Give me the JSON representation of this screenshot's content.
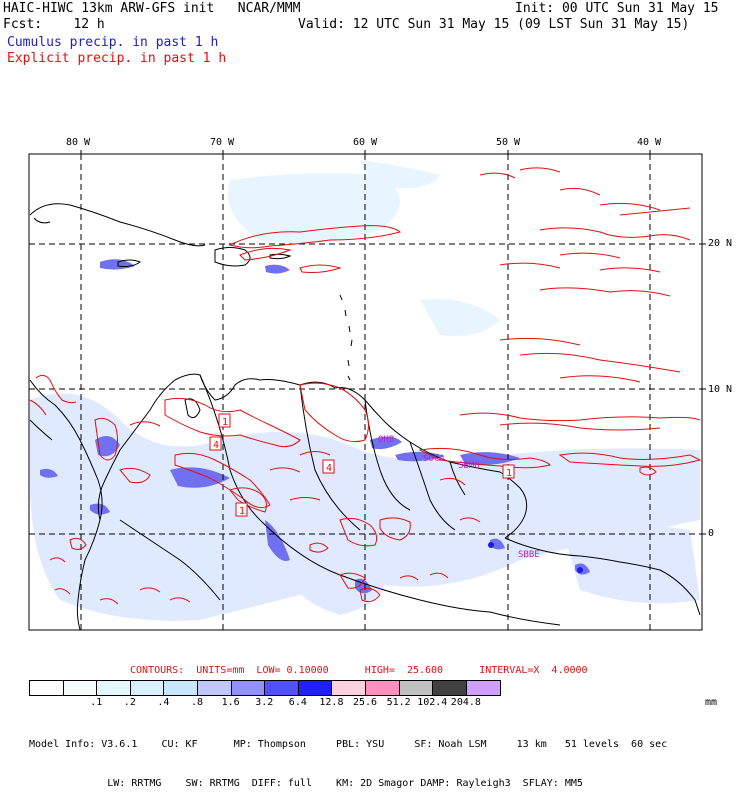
{
  "header": {
    "line1_left": "HAIC-HIWC 13km ARW-GFS init   NCAR/MMM",
    "line1_right": "Init: 00 UTC Sun 31 May 15",
    "line2_left": "Fcst:    12 h",
    "line2_right": "Valid: 12 UTC Sun 31 May 15 (09 LST Sun 31 May 15)",
    "legend_cumulus": "Cumulus precip. in past 1 h",
    "legend_explicit": "Explicit precip. in past 1 h"
  },
  "map": {
    "lon_labels": [
      "80 W",
      "70 W",
      "60 W",
      "50 W",
      "40 W"
    ],
    "lat_labels": [
      "20 N",
      "10 N",
      "0"
    ],
    "markers": [
      {
        "label": "1"
      },
      {
        "label": "4"
      },
      {
        "label": "1"
      },
      {
        "label": "4"
      },
      {
        "label": "1"
      }
    ],
    "place_labels": [
      "OHB",
      "SBBE",
      "SBMQ",
      "SOCA"
    ],
    "colors": {
      "contour": "#e01010",
      "cumulus_light": "#ccd8ff",
      "cumulus_mid": "#6a6af0",
      "cumulus_heavy": "#1a1af0",
      "place_label": "#c020c0"
    }
  },
  "footer": {
    "contours": "CONTOURS:  UNITS=mm  LOW= 0.10000      HIGH=  25.600      INTERVAL=X  4.0000",
    "colorbar_colors": [
      "#ffffff",
      "#f4fcff",
      "#e4f6ff",
      "#d8f0ff",
      "#c8e8ff",
      "#c0c8ff",
      "#9090ff",
      "#5050ff",
      "#2020ff",
      "#ffd0e0",
      "#ff90c0",
      "#c0c0c0",
      "#404040",
      "#d0a0ff"
    ],
    "tick_labels": [
      ".1",
      ".2",
      ".4",
      ".8",
      "1.6",
      "3.2",
      "6.4",
      "12.8",
      "25.6",
      "51.2",
      "102.4",
      "204.8"
    ],
    "units": "mm",
    "model_line1": "Model Info: V3.6.1    CU: KF      MP: Thompson     PBL: YSU     SF: Noah LSM     13 km   51 levels  60 sec",
    "model_line2": "             LW: RRTMG    SW: RRTMG  DIFF: full    KM: 2D Smagor DAMP: Rayleigh3  SFLAY: MM5"
  }
}
